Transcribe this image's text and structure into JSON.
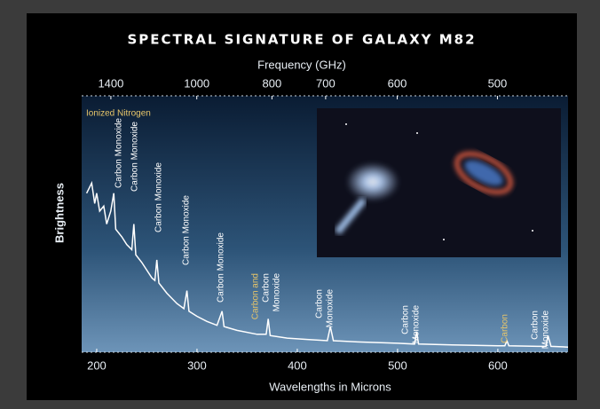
{
  "chart_data": {
    "type": "line",
    "title": "SPECTRAL SIGNATURE OF GALAXY M82",
    "xlabel": "Wavelengths in Microns",
    "x2label": "Frequency (GHz)",
    "ylabel": "Brightness",
    "x": [
      190,
      195,
      198,
      200,
      203,
      207,
      210,
      214,
      217,
      219,
      225,
      230,
      235,
      237,
      239,
      245,
      250,
      255,
      258,
      260,
      262,
      270,
      280,
      287,
      290,
      292,
      300,
      310,
      320,
      325,
      327,
      340,
      360,
      369,
      371,
      373,
      390,
      410,
      430,
      433,
      436,
      460,
      500,
      517,
      519,
      521,
      560,
      600,
      607,
      609,
      611,
      640,
      648,
      650,
      653,
      670
    ],
    "values": [
      62,
      66,
      58,
      62,
      55,
      57,
      50,
      55,
      62,
      48,
      45,
      42,
      40,
      50,
      38,
      35,
      32,
      29,
      28,
      36,
      27,
      23,
      19,
      17,
      24,
      16,
      14,
      12,
      10.5,
      16,
      10,
      8.5,
      7,
      7,
      13,
      6.5,
      5.5,
      5,
      4.5,
      10,
      4.5,
      4,
      3.5,
      3.2,
      8,
      3.2,
      2.8,
      2.5,
      2.5,
      4.5,
      2.5,
      2.3,
      2.3,
      6.5,
      2.3,
      2
    ],
    "color": "#ffffff",
    "xlim": [
      185,
      670
    ],
    "ylim": [
      0,
      100
    ],
    "xticks": [
      200,
      300,
      400,
      500,
      600
    ],
    "x2ticks": [
      1400,
      1000,
      800,
      700,
      600,
      500
    ],
    "annotations": [
      {
        "text": "Ionized Nitrogen",
        "color": "#e8c66a"
      },
      {
        "text": "Carbon Monoxide",
        "color": "#ffffff"
      },
      {
        "text": "Carbon Monoxide",
        "color": "#ffffff"
      },
      {
        "text": "Carbon Monoxide",
        "color": "#ffffff"
      },
      {
        "text": "Carbon Monoxide",
        "color": "#ffffff"
      },
      {
        "text": "Carbon Monoxide",
        "color": "#ffffff"
      },
      {
        "text": "Carbon and",
        "color": "#e8c66a"
      },
      {
        "text": "Carbon",
        "color": "#ffffff"
      },
      {
        "text": "Monoxide",
        "color": "#ffffff"
      },
      {
        "text": "Carbon",
        "color": "#ffffff"
      },
      {
        "text": "Monoxide",
        "color": "#ffffff"
      },
      {
        "text": "Carbon",
        "color": "#ffffff"
      },
      {
        "text": "Monoxide",
        "color": "#ffffff"
      },
      {
        "text": "Carbon",
        "color": "#e8c66a"
      },
      {
        "text": "Carbon",
        "color": "#ffffff"
      },
      {
        "text": "Monoxide",
        "color": "#ffffff"
      }
    ]
  }
}
